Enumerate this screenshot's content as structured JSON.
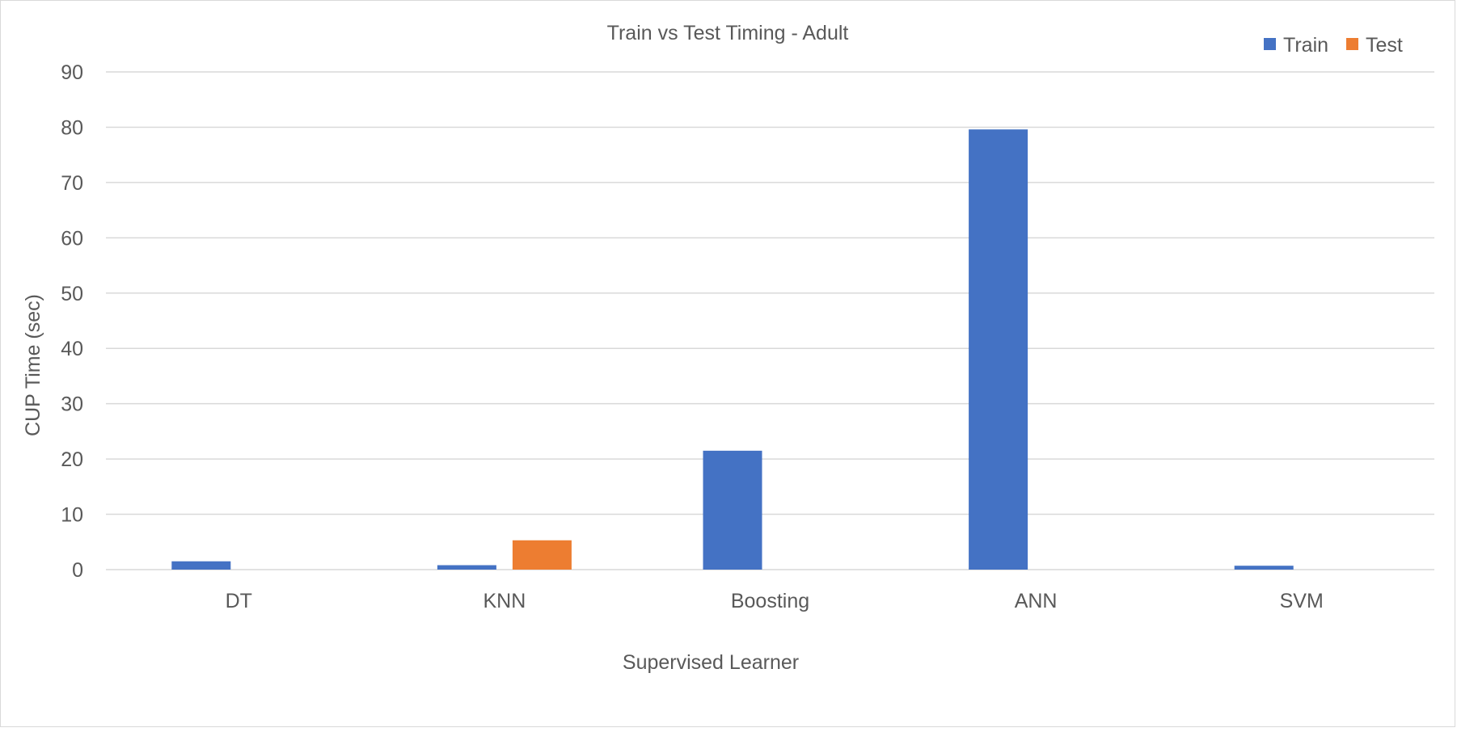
{
  "chart_data": {
    "type": "bar",
    "title": "Train vs Test Timing - Adult",
    "xlabel": "Supervised Learner",
    "ylabel": "CUP Time (sec)",
    "categories": [
      "DT",
      "KNN",
      "Boosting",
      "ANN",
      "SVM"
    ],
    "series": [
      {
        "name": "Train",
        "color": "#4472C4",
        "values": [
          1.5,
          0.8,
          21.5,
          79.6,
          0.7
        ]
      },
      {
        "name": "Test",
        "color": "#ED7D31",
        "values": [
          0,
          5.3,
          0,
          0,
          0
        ]
      }
    ],
    "ylim": [
      0,
      90
    ],
    "yticks": [
      "0",
      "10",
      "20",
      "30",
      "40",
      "50",
      "60",
      "70",
      "80",
      "90"
    ],
    "grid": true,
    "legend": "top-right"
  }
}
